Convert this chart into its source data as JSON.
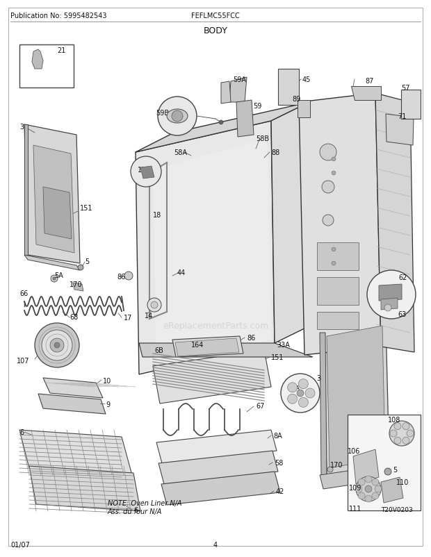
{
  "title": "BODY",
  "header_left": "Publication No: 5995482543",
  "header_center": "FEFLMC55FCC",
  "footer_left": "01/07",
  "footer_center": "4",
  "bg_color": "#ffffff",
  "fig_width": 6.2,
  "fig_height": 8.03,
  "dpi": 100,
  "note_text": "NOTE: Oven Liner N/A\nAss. du four N/A",
  "watermark_text": "eReplacementParts.com",
  "watermark_color": "#aaaaaa",
  "watermark_alpha": 0.35
}
